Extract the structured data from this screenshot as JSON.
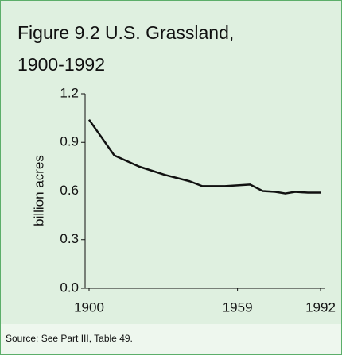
{
  "chart_data": {
    "type": "line",
    "title": [
      "Figure 9.2  U.S. Grassland,",
      "1900-1992"
    ],
    "y_label": "billion acres",
    "source": "Source: See Part III, Table 49.",
    "x": [
      1900,
      1910,
      1920,
      1930,
      1940,
      1945,
      1954,
      1959,
      1964,
      1969,
      1974,
      1978,
      1982,
      1987,
      1992
    ],
    "series": [
      {
        "name": "U.S. Grassland",
        "color": "#111111",
        "values": [
          1.04,
          0.82,
          0.75,
          0.7,
          0.66,
          0.63,
          0.63,
          0.635,
          0.64,
          0.6,
          0.595,
          0.585,
          0.595,
          0.59,
          0.59
        ]
      }
    ],
    "xlim": [
      1900,
      1992
    ],
    "xticks": [
      1900,
      1959,
      1992
    ],
    "ylim": [
      0,
      1.2
    ],
    "yticks": [
      {
        "value": 0,
        "label": "0.0"
      },
      0.3,
      0.6,
      0.9,
      1.2
    ]
  }
}
